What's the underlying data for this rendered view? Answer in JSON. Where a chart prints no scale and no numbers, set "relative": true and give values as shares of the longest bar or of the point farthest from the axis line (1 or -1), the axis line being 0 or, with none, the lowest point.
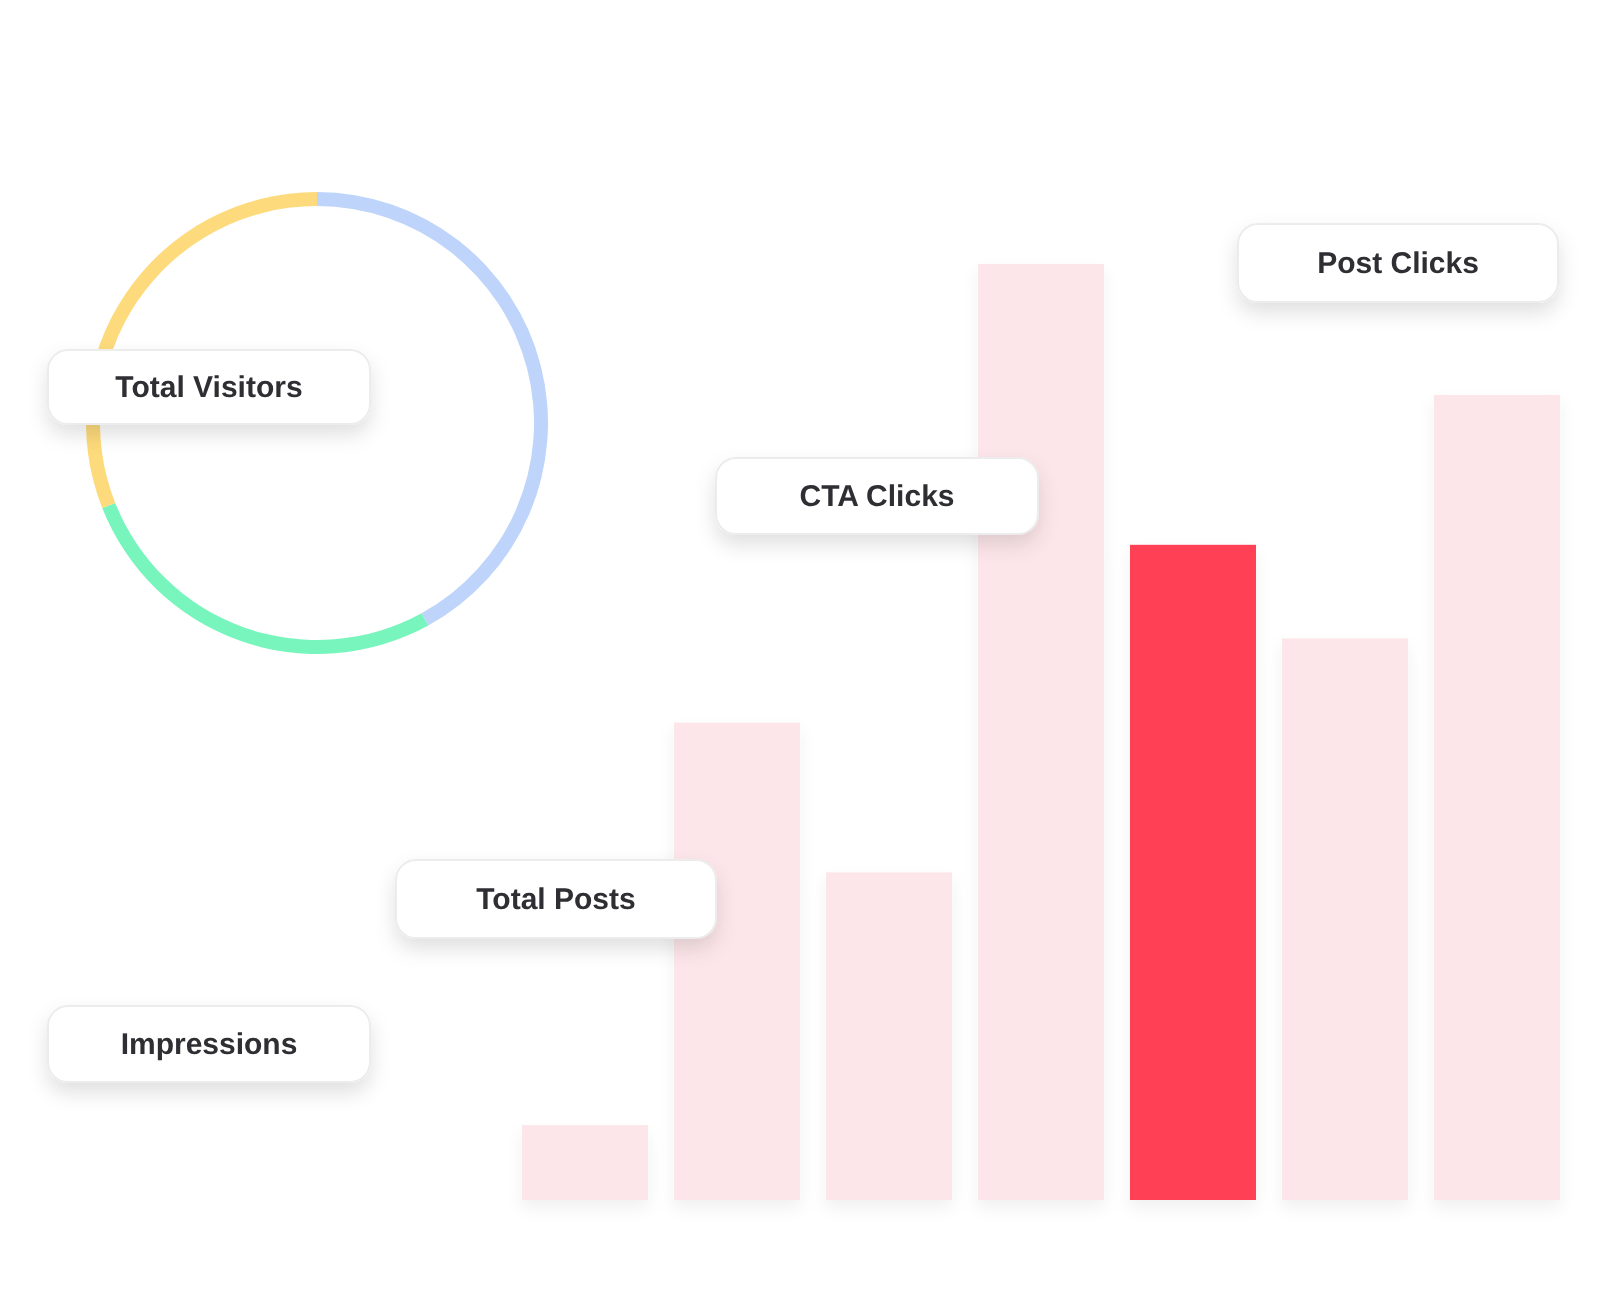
{
  "chart_data": [
    {
      "type": "donut",
      "categories": [
        null,
        null,
        null
      ],
      "values": [
        42,
        27,
        31
      ],
      "colors": [
        "#bfd4fb",
        "#78f5bc",
        "#fdda7b"
      ],
      "annotations": [
        "Total Visitors"
      ]
    },
    {
      "type": "bar",
      "relative": true,
      "categories": [
        null,
        null,
        null,
        null,
        null,
        null,
        null
      ],
      "values": [
        0.08,
        0.51,
        0.35,
        1,
        0.7,
        0.6,
        0.86
      ],
      "colors": [
        "#fde6e9",
        "#fde6e9",
        "#fde6e9",
        "#fde6e9",
        "#ff4155",
        "#fde6e9",
        "#fde6e9"
      ],
      "annotations": [
        "Post Clicks",
        "CTA Clicks",
        "Total Posts",
        "Impressions"
      ]
    }
  ]
}
